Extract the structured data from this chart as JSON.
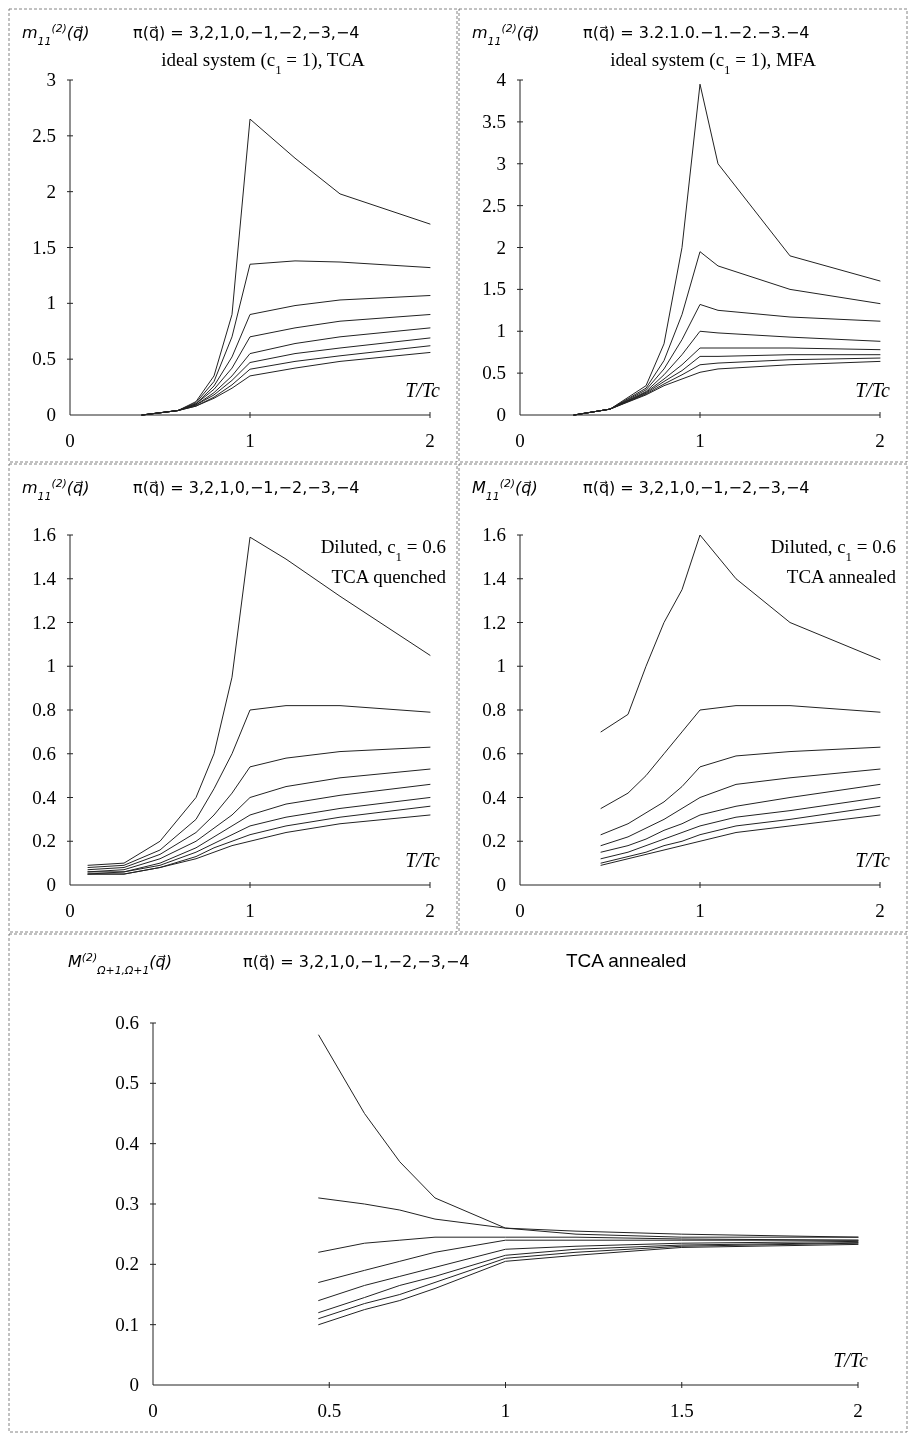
{
  "chart_data": [
    {
      "type": "line",
      "title": "π(q⃗) = 3,2,1,0,−1,−2,−3,−4",
      "subtitle": "ideal system (c$_{1}$ = 1), TCA",
      "ylabel": "m$_{11}$$^{(2)}$(q⃗)",
      "xlabel": "T/Tc",
      "xlim": [
        0,
        2
      ],
      "xticks": [
        0,
        1,
        2
      ],
      "ylim": [
        0,
        3
      ],
      "yticks": [
        0,
        0.5,
        1,
        1.5,
        2,
        2.5,
        3
      ],
      "x": [
        0.4,
        0.6,
        0.7,
        0.8,
        0.9,
        1.0,
        1.25,
        1.5,
        2.0
      ],
      "series": [
        {
          "color": "#222222",
          "values": [
            0,
            0.04,
            0.12,
            0.35,
            0.9,
            2.65,
            2.3,
            1.98,
            1.71
          ]
        },
        {
          "color": "#222222",
          "values": [
            0,
            0.04,
            0.11,
            0.3,
            0.7,
            1.35,
            1.38,
            1.37,
            1.32
          ]
        },
        {
          "color": "#222222",
          "values": [
            0,
            0.04,
            0.1,
            0.26,
            0.52,
            0.9,
            0.98,
            1.03,
            1.07
          ]
        },
        {
          "color": "#222222",
          "values": [
            0,
            0.04,
            0.1,
            0.23,
            0.42,
            0.7,
            0.78,
            0.84,
            0.9
          ]
        },
        {
          "color": "#222222",
          "values": [
            0,
            0.04,
            0.09,
            0.2,
            0.35,
            0.55,
            0.64,
            0.7,
            0.78
          ]
        },
        {
          "color": "#222222",
          "values": [
            0,
            0.04,
            0.09,
            0.18,
            0.31,
            0.47,
            0.55,
            0.6,
            0.69
          ]
        },
        {
          "color": "#222222",
          "values": [
            0,
            0.04,
            0.08,
            0.16,
            0.27,
            0.41,
            0.48,
            0.53,
            0.62
          ]
        },
        {
          "color": "#222222",
          "values": [
            0,
            0.04,
            0.08,
            0.15,
            0.24,
            0.35,
            0.42,
            0.48,
            0.56
          ]
        }
      ]
    },
    {
      "type": "line",
      "title": "π(q⃗) = 3.2.1.0.−1.−2.−3.−4",
      "subtitle": "ideal system (c$_{1}$ = 1), MFA",
      "ylabel": "m$_{11}$$^{(2)}$(q⃗)",
      "xlabel": "T/Tc",
      "xlim": [
        0,
        2
      ],
      "xticks": [
        0,
        1,
        2
      ],
      "ylim": [
        0,
        4
      ],
      "yticks": [
        0,
        0.5,
        1,
        1.5,
        2,
        2.5,
        3,
        3.5,
        4
      ],
      "x": [
        0.3,
        0.5,
        0.7,
        0.8,
        0.9,
        1.0,
        1.1,
        1.5,
        2.0
      ],
      "series": [
        {
          "color": "#222222",
          "values": [
            0,
            0.07,
            0.35,
            0.85,
            2.0,
            3.95,
            3.0,
            1.9,
            1.6
          ]
        },
        {
          "color": "#222222",
          "values": [
            0,
            0.07,
            0.32,
            0.65,
            1.2,
            1.95,
            1.78,
            1.5,
            1.33
          ]
        },
        {
          "color": "#222222",
          "values": [
            0,
            0.07,
            0.3,
            0.55,
            0.9,
            1.32,
            1.25,
            1.17,
            1.12
          ]
        },
        {
          "color": "#222222",
          "values": [
            0,
            0.07,
            0.28,
            0.48,
            0.72,
            1.0,
            0.98,
            0.93,
            0.88
          ]
        },
        {
          "color": "#222222",
          "values": [
            0,
            0.07,
            0.27,
            0.43,
            0.6,
            0.8,
            0.8,
            0.8,
            0.78
          ]
        },
        {
          "color": "#222222",
          "values": [
            0,
            0.07,
            0.26,
            0.4,
            0.53,
            0.7,
            0.7,
            0.72,
            0.72
          ]
        },
        {
          "color": "#222222",
          "values": [
            0,
            0.07,
            0.25,
            0.37,
            0.48,
            0.6,
            0.62,
            0.66,
            0.68
          ]
        },
        {
          "color": "#222222",
          "values": [
            0,
            0.07,
            0.24,
            0.35,
            0.43,
            0.51,
            0.55,
            0.6,
            0.64
          ]
        }
      ]
    },
    {
      "type": "line",
      "title": "π(q⃗) = 3,2,1,0,−1,−2,−3,−4",
      "subtitle": "Diluted, c$_{1}$ = 0.6",
      "annotations": [
        "TCA quenched"
      ],
      "ylabel": "m$_{11}$$^{(2)}$(q⃗)",
      "xlabel": "T/Tc",
      "xlim": [
        0,
        2
      ],
      "xticks": [
        0,
        1,
        2
      ],
      "ylim": [
        0,
        1.6
      ],
      "yticks": [
        0,
        0.2,
        0.4,
        0.6,
        0.8,
        1,
        1.2,
        1.4,
        1.6
      ],
      "x": [
        0.1,
        0.3,
        0.5,
        0.7,
        0.8,
        0.9,
        1.0,
        1.2,
        1.5,
        2.0
      ],
      "series": [
        {
          "color": "#222222",
          "values": [
            0.09,
            0.1,
            0.2,
            0.4,
            0.6,
            0.95,
            1.59,
            1.49,
            1.32,
            1.05
          ]
        },
        {
          "color": "#222222",
          "values": [
            0.08,
            0.09,
            0.16,
            0.3,
            0.44,
            0.6,
            0.8,
            0.82,
            0.82,
            0.79
          ]
        },
        {
          "color": "#222222",
          "values": [
            0.07,
            0.08,
            0.14,
            0.24,
            0.32,
            0.42,
            0.54,
            0.58,
            0.61,
            0.63
          ]
        },
        {
          "color": "#222222",
          "values": [
            0.06,
            0.07,
            0.12,
            0.2,
            0.26,
            0.32,
            0.4,
            0.45,
            0.49,
            0.53
          ]
        },
        {
          "color": "#222222",
          "values": [
            0.06,
            0.06,
            0.1,
            0.17,
            0.22,
            0.27,
            0.32,
            0.37,
            0.41,
            0.46
          ]
        },
        {
          "color": "#222222",
          "values": [
            0.05,
            0.06,
            0.09,
            0.15,
            0.19,
            0.23,
            0.27,
            0.31,
            0.35,
            0.4
          ]
        },
        {
          "color": "#222222",
          "values": [
            0.05,
            0.05,
            0.08,
            0.13,
            0.17,
            0.2,
            0.23,
            0.27,
            0.31,
            0.36
          ]
        },
        {
          "color": "#222222",
          "values": [
            0.05,
            0.05,
            0.08,
            0.12,
            0.15,
            0.18,
            0.2,
            0.24,
            0.28,
            0.32
          ]
        }
      ]
    },
    {
      "type": "line",
      "title": "π(q⃗) = 3,2,1,0,−1,−2,−3,−4",
      "subtitle": "Diluted, c$_{1}$ = 0.6",
      "annotations": [
        "TCA annealed"
      ],
      "ylabel": "M$_{11}$$^{(2)}$(q⃗)",
      "xlabel": "T/Tc",
      "xlim": [
        0,
        2
      ],
      "xticks": [
        0,
        1,
        2
      ],
      "ylim": [
        0,
        1.6
      ],
      "yticks": [
        0,
        0.2,
        0.4,
        0.6,
        0.8,
        1,
        1.2,
        1.4,
        1.6
      ],
      "x": [
        0.45,
        0.6,
        0.7,
        0.8,
        0.9,
        1.0,
        1.2,
        1.5,
        2.0
      ],
      "series": [
        {
          "color": "#222222",
          "values": [
            0.7,
            0.78,
            1.0,
            1.2,
            1.35,
            1.6,
            1.4,
            1.2,
            1.03
          ]
        },
        {
          "color": "#222222",
          "values": [
            0.35,
            0.42,
            0.5,
            0.6,
            0.7,
            0.8,
            0.82,
            0.82,
            0.79
          ]
        },
        {
          "color": "#222222",
          "values": [
            0.23,
            0.28,
            0.33,
            0.38,
            0.45,
            0.54,
            0.59,
            0.61,
            0.63
          ]
        },
        {
          "color": "#222222",
          "values": [
            0.18,
            0.22,
            0.26,
            0.3,
            0.35,
            0.4,
            0.46,
            0.49,
            0.53
          ]
        },
        {
          "color": "#222222",
          "values": [
            0.15,
            0.18,
            0.21,
            0.25,
            0.28,
            0.32,
            0.36,
            0.4,
            0.46
          ]
        },
        {
          "color": "#222222",
          "values": [
            0.12,
            0.15,
            0.18,
            0.21,
            0.24,
            0.27,
            0.31,
            0.34,
            0.4
          ]
        },
        {
          "color": "#222222",
          "values": [
            0.1,
            0.13,
            0.15,
            0.18,
            0.2,
            0.23,
            0.27,
            0.3,
            0.36
          ]
        },
        {
          "color": "#222222",
          "values": [
            0.09,
            0.12,
            0.14,
            0.16,
            0.18,
            0.2,
            0.24,
            0.27,
            0.32
          ]
        }
      ]
    },
    {
      "type": "line",
      "title": "π(q⃗) = 3,2,1,0,−1,−2,−3,−4",
      "subtitle": "TCA annealed",
      "ylabel": "M$^{(2)}$$_{Ω+1,Ω+1}$(q⃗)",
      "xlabel": "T/Tc",
      "xlim": [
        0,
        2
      ],
      "xticks": [
        0,
        0.5,
        1,
        1.5,
        2
      ],
      "ylim": [
        0,
        0.6
      ],
      "yticks": [
        0,
        0.1,
        0.2,
        0.3,
        0.4,
        0.5,
        0.6
      ],
      "x": [
        0.47,
        0.6,
        0.7,
        0.8,
        1.0,
        1.2,
        1.5,
        2.0
      ],
      "series": [
        {
          "color": "#222222",
          "values": [
            0.58,
            0.45,
            0.37,
            0.31,
            0.26,
            0.25,
            0.245,
            0.245
          ]
        },
        {
          "color": "#222222",
          "values": [
            0.31,
            0.3,
            0.29,
            0.275,
            0.26,
            0.255,
            0.25,
            0.245
          ]
        },
        {
          "color": "#222222",
          "values": [
            0.22,
            0.235,
            0.24,
            0.245,
            0.245,
            0.245,
            0.242,
            0.24
          ]
        },
        {
          "color": "#222222",
          "values": [
            0.17,
            0.19,
            0.205,
            0.22,
            0.24,
            0.24,
            0.24,
            0.24
          ]
        },
        {
          "color": "#222222",
          "values": [
            0.14,
            0.165,
            0.18,
            0.195,
            0.225,
            0.23,
            0.235,
            0.238
          ]
        },
        {
          "color": "#222222",
          "values": [
            0.12,
            0.145,
            0.165,
            0.18,
            0.215,
            0.225,
            0.232,
            0.236
          ]
        },
        {
          "color": "#222222",
          "values": [
            0.11,
            0.135,
            0.15,
            0.17,
            0.21,
            0.22,
            0.23,
            0.235
          ]
        },
        {
          "color": "#222222",
          "values": [
            0.1,
            0.125,
            0.14,
            0.16,
            0.205,
            0.215,
            0.228,
            0.233
          ]
        }
      ]
    }
  ]
}
